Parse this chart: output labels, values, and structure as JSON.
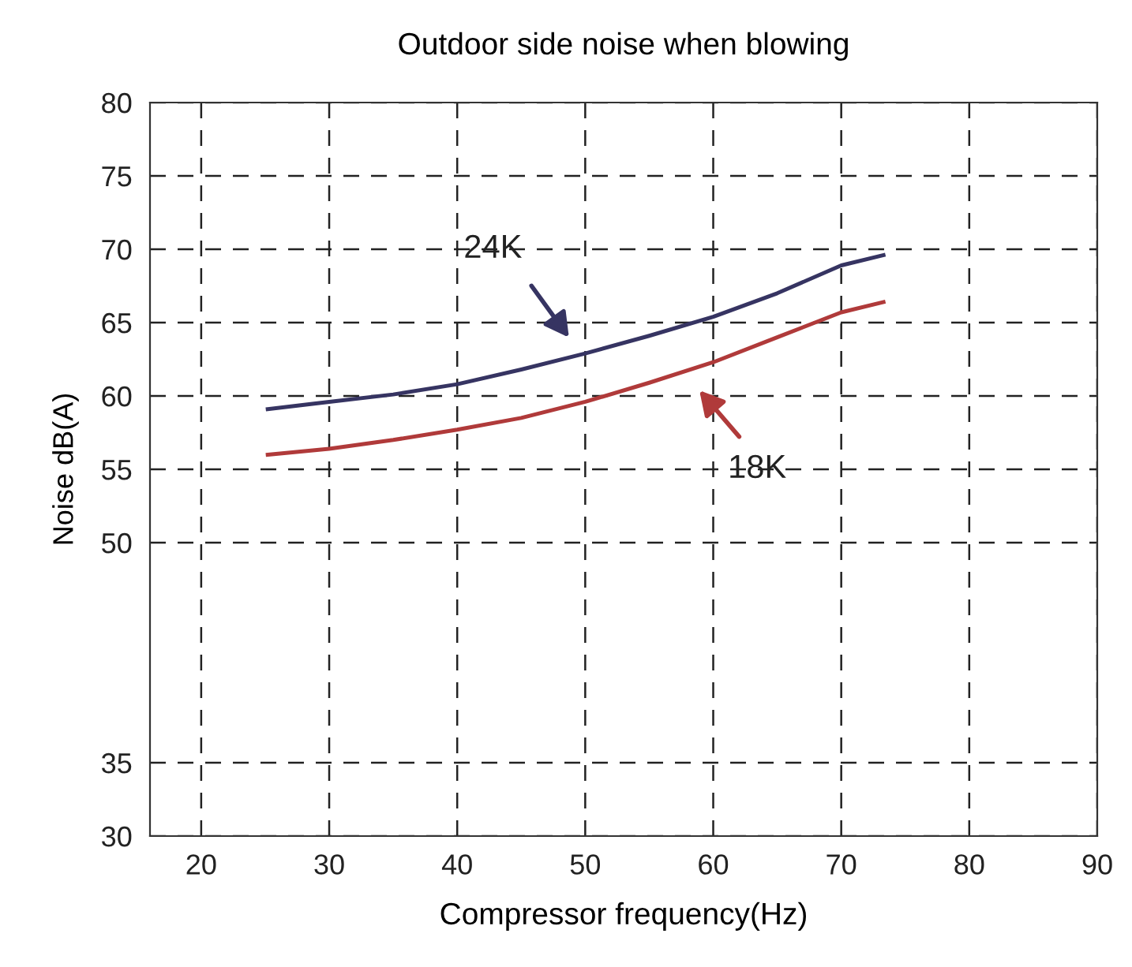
{
  "chart_data": {
    "type": "line",
    "title": "Outdoor side noise when blowing",
    "xlabel": "Compressor frequency(Hz)",
    "ylabel": "Noise dB(A)",
    "xlim": [
      16,
      90
    ],
    "xticks": [
      20,
      30,
      40,
      50,
      60,
      70,
      80,
      90
    ],
    "ylim": [
      30,
      80
    ],
    "yticks": [
      80,
      75,
      70,
      65,
      60,
      55,
      50,
      35,
      30
    ],
    "grid": true,
    "legend": false,
    "marker": "none",
    "line_style": "solid",
    "series": [
      {
        "color": "#363462",
        "x": [
          25.2,
          30,
          35,
          40,
          45,
          50,
          55,
          60,
          65,
          70,
          73.3
        ],
        "values": [
          59.1,
          59.6,
          60.1,
          60.8,
          61.8,
          62.9,
          64.1,
          65.4,
          67.0,
          68.9,
          69.6
        ]
      },
      {
        "color": "#b03a3a",
        "x": [
          25.2,
          30,
          35,
          40,
          45,
          50,
          55,
          60,
          65,
          70,
          73.3
        ],
        "values": [
          56.0,
          56.4,
          57.0,
          57.7,
          58.5,
          59.6,
          60.9,
          62.3,
          64.0,
          65.7,
          66.4
        ]
      }
    ],
    "annotations": [
      "24K",
      "18K"
    ]
  }
}
